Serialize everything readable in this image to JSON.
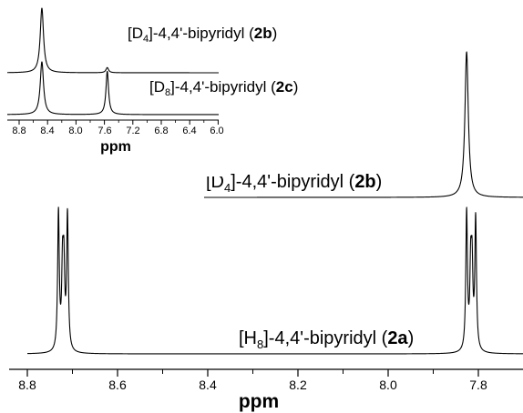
{
  "chart_data": [
    {
      "type": "line",
      "title": "",
      "xlabel": "ppm",
      "ylabel": "",
      "x_reversed": true,
      "xlim": [
        8.8,
        7.7
      ],
      "xticks": [
        "8.8",
        "8.6",
        "8.4",
        "8.2",
        "8.0",
        "7.8"
      ],
      "grid": false,
      "series": [
        {
          "name": "[D4]-4,4'-bipyridyl (2b)",
          "label_parts": [
            "[D",
            "4",
            "]-4,4'-bipyridyl (",
            "2b",
            ")"
          ],
          "peaks": [
            {
              "ppm": 7.826,
              "height": 1.0,
              "width": 0.0045
            }
          ]
        },
        {
          "name": "[H8]-4,4'-bipyridyl (2a)",
          "label_parts": [
            "[H",
            "8",
            "]-4,4'-bipyridyl (",
            "2a",
            ")"
          ],
          "peaks": [
            {
              "ppm": 8.731,
              "height": 1.0,
              "width": 0.0022
            },
            {
              "ppm": 8.722,
              "height": 0.55,
              "width": 0.0022
            },
            {
              "ppm": 8.719,
              "height": 0.55,
              "width": 0.0022
            },
            {
              "ppm": 8.711,
              "height": 0.98,
              "width": 0.0022
            },
            {
              "ppm": 7.826,
              "height": 1.0,
              "width": 0.0022
            },
            {
              "ppm": 7.817,
              "height": 0.55,
              "width": 0.0022
            },
            {
              "ppm": 7.814,
              "height": 0.55,
              "width": 0.0022
            },
            {
              "ppm": 7.806,
              "height": 0.95,
              "width": 0.0022
            }
          ]
        }
      ]
    },
    {
      "type": "line",
      "title": "",
      "xlabel": "ppm",
      "ylabel": "",
      "x_reversed": true,
      "xlim": [
        8.9,
        6.0
      ],
      "xticks": [
        "8.8",
        "8.4",
        "8.0",
        "7.6",
        "7.2",
        "6.8",
        "6.4",
        "6.0"
      ],
      "grid": false,
      "series": [
        {
          "name": "[D4]-4,4'-bipyridyl (2b)",
          "label_parts": [
            "[D",
            "4",
            "]-4,4'-bipyridyl (",
            "2b",
            ")"
          ],
          "peaks": [
            {
              "ppm": 8.48,
              "height": 1.0,
              "width": 0.028
            },
            {
              "ppm": 7.56,
              "height": 0.08,
              "width": 0.022
            }
          ]
        },
        {
          "name": "[D8]-4,4'-bipyridyl (2c)",
          "label_parts": [
            "[D",
            "8",
            "]-4,4'-bipyridyl (",
            "2c",
            ")"
          ],
          "peaks": [
            {
              "ppm": 8.48,
              "height": 1.0,
              "width": 0.028
            },
            {
              "ppm": 7.56,
              "height": 0.82,
              "width": 0.022
            }
          ]
        }
      ]
    }
  ]
}
